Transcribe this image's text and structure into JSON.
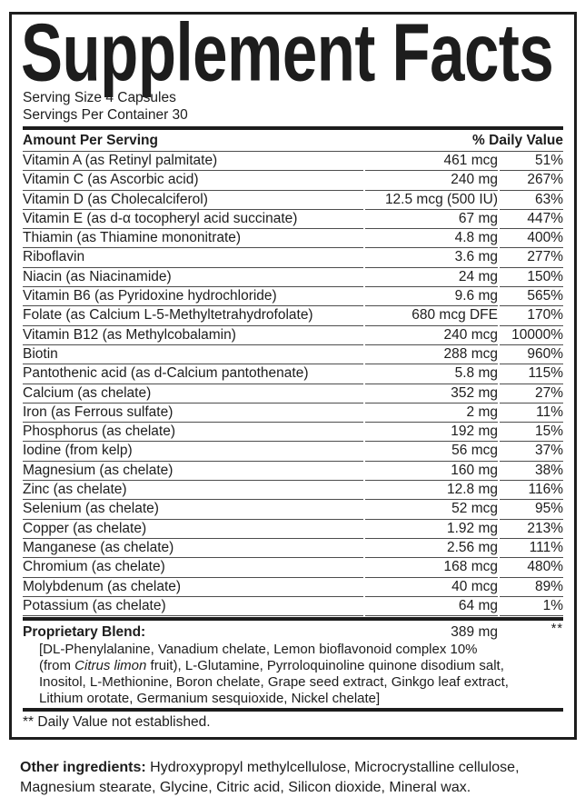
{
  "title": "Supplement Facts",
  "serving": {
    "size": "Serving Size 4 Capsules",
    "per_container": "Servings Per Container 30"
  },
  "columns": {
    "amount_header": "Amount Per Serving",
    "dv_header": "% Daily Value"
  },
  "nutrients": [
    {
      "name": "Vitamin A (as Retinyl palmitate)",
      "amount": "461 mcg",
      "daily_value": "51%"
    },
    {
      "name": "Vitamin C (as Ascorbic acid)",
      "amount": "240 mg",
      "daily_value": "267%"
    },
    {
      "name": "Vitamin D (as Cholecalciferol)",
      "amount": "12.5 mcg (500 IU)",
      "daily_value": "63%"
    },
    {
      "name": "Vitamin E (as d-α tocopheryl acid succinate)",
      "amount": "67 mg",
      "daily_value": "447%"
    },
    {
      "name": "Thiamin (as Thiamine mononitrate)",
      "amount": "4.8 mg",
      "daily_value": "400%"
    },
    {
      "name": "Riboflavin",
      "amount": "3.6 mg",
      "daily_value": "277%"
    },
    {
      "name": "Niacin (as Niacinamide)",
      "amount": "24 mg",
      "daily_value": "150%"
    },
    {
      "name": "Vitamin B6 (as Pyridoxine hydrochloride)",
      "amount": "9.6 mg",
      "daily_value": "565%"
    },
    {
      "name": "Folate (as Calcium L-5-Methyltetrahydrofolate)",
      "amount": "680 mcg DFE",
      "daily_value": "170%"
    },
    {
      "name": "Vitamin B12 (as Methylcobalamin)",
      "amount": "240 mcg",
      "daily_value": "10000%"
    },
    {
      "name": "Biotin",
      "amount": "288 mcg",
      "daily_value": "960%"
    },
    {
      "name": "Pantothenic acid (as d-Calcium pantothenate)",
      "amount": "5.8 mg",
      "daily_value": "115%"
    },
    {
      "name": "Calcium (as chelate)",
      "amount": "352 mg",
      "daily_value": "27%"
    },
    {
      "name": "Iron (as Ferrous sulfate)",
      "amount": "2 mg",
      "daily_value": "11%"
    },
    {
      "name": "Phosphorus (as chelate)",
      "amount": "192 mg",
      "daily_value": "15%"
    },
    {
      "name": "Iodine (from kelp)",
      "amount": "56 mcg",
      "daily_value": "37%"
    },
    {
      "name": "Magnesium (as chelate)",
      "amount": "160 mg",
      "daily_value": "38%"
    },
    {
      "name": "Zinc (as chelate)",
      "amount": "12.8 mg",
      "daily_value": "116%"
    },
    {
      "name": "Selenium (as chelate)",
      "amount": "52 mcg",
      "daily_value": "95%"
    },
    {
      "name": "Copper (as chelate)",
      "amount": "1.92 mg",
      "daily_value": "213%"
    },
    {
      "name": "Manganese (as chelate)",
      "amount": "2.56 mg",
      "daily_value": "111%"
    },
    {
      "name": "Chromium (as chelate)",
      "amount": "168 mcg",
      "daily_value": "480%"
    },
    {
      "name": "Molybdenum (as chelate)",
      "amount": "40 mcg",
      "daily_value": "89%"
    },
    {
      "name": "Potassium (as chelate)",
      "amount": "64 mg",
      "daily_value": "1%"
    }
  ],
  "proprietary_blend": {
    "label": "Proprietary Blend:",
    "amount": "389 mg",
    "dv_symbol": "**",
    "lines": [
      {
        "text": "[DL-Phenylalanine, Vanadium chelate, Lemon bioflavonoid complex 10%"
      },
      {
        "pre": "(from ",
        "italic": "Citrus limon",
        "post": " fruit), L-Glutamine, Pyrroloquinoline quinone disodium salt,"
      },
      {
        "text": "Inositol, L-Methionine, Boron chelate, Grape seed extract, Ginkgo leaf extract,"
      },
      {
        "text": "Lithium orotate, Germanium sesquioxide, Nickel chelate]"
      }
    ]
  },
  "footnote": "** Daily Value not established.",
  "other_ingredients": {
    "label": "Other ingredients:",
    "text": "Hydroxypropyl methylcellulose, Microcrystalline cellulose, Magnesium stearate, Glycine, Citric acid, Silicon dioxide, Mineral wax."
  },
  "colors": {
    "text": "#1d1d1d",
    "border": "#1d1d1d",
    "rule": "#4d4d4d",
    "background": "#ffffff"
  }
}
